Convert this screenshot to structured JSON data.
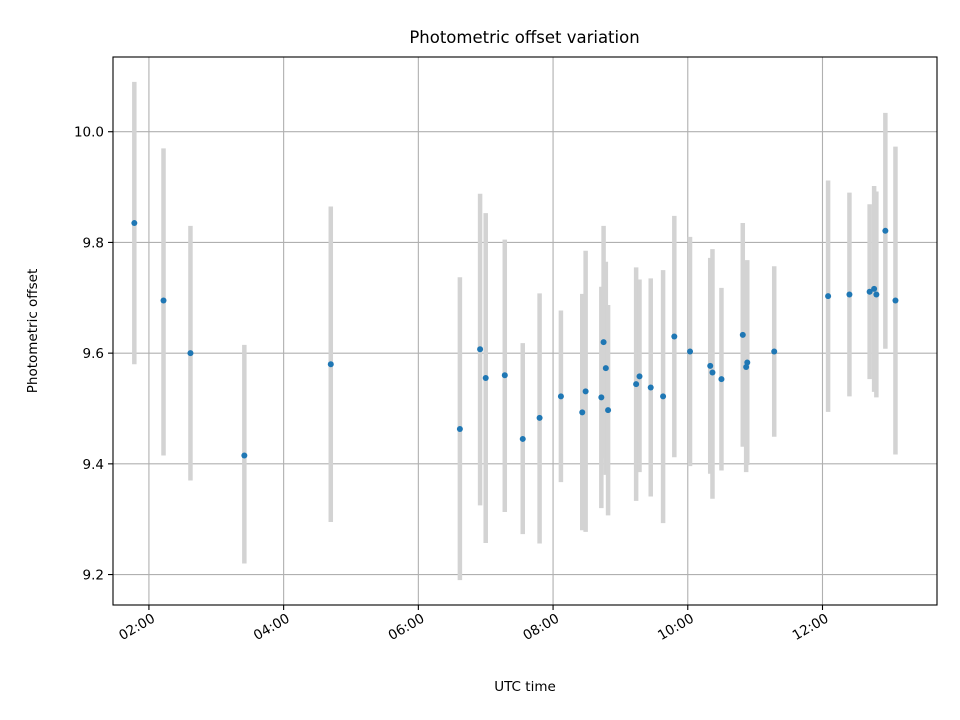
{
  "chart_data": {
    "type": "scatter",
    "title": "Photometric offset variation",
    "xlabel": "UTC time",
    "ylabel": "Photometric offset",
    "xlim": [
      "01:28",
      "13:42"
    ],
    "ylim": [
      9.145,
      10.135
    ],
    "x_ticks": [
      "02:00",
      "04:00",
      "06:00",
      "08:00",
      "10:00",
      "12:00"
    ],
    "y_ticks": [
      "9.2",
      "9.4",
      "9.6",
      "9.8",
      "10.0"
    ],
    "grid": true,
    "colors": {
      "marker": "#1f77b4",
      "errorbar": "#d3d3d3"
    },
    "points": [
      {
        "x": "01:47",
        "y": 9.835,
        "ylo": 9.58,
        "yhi": 10.09
      },
      {
        "x": "02:13",
        "y": 9.695,
        "ylo": 9.415,
        "yhi": 9.97
      },
      {
        "x": "02:37",
        "y": 9.6,
        "ylo": 9.37,
        "yhi": 9.83
      },
      {
        "x": "03:25",
        "y": 9.415,
        "ylo": 9.22,
        "yhi": 9.615
      },
      {
        "x": "04:42",
        "y": 9.58,
        "ylo": 9.295,
        "yhi": 9.865
      },
      {
        "x": "06:37",
        "y": 9.463,
        "ylo": 9.19,
        "yhi": 9.737
      },
      {
        "x": "06:55",
        "y": 9.607,
        "ylo": 9.325,
        "yhi": 9.888
      },
      {
        "x": "07:00",
        "y": 9.555,
        "ylo": 9.257,
        "yhi": 9.853
      },
      {
        "x": "07:17",
        "y": 9.56,
        "ylo": 9.313,
        "yhi": 9.805
      },
      {
        "x": "07:33",
        "y": 9.445,
        "ylo": 9.273,
        "yhi": 9.618
      },
      {
        "x": "07:48",
        "y": 9.483,
        "ylo": 9.256,
        "yhi": 9.708
      },
      {
        "x": "08:07",
        "y": 9.522,
        "ylo": 9.367,
        "yhi": 9.677
      },
      {
        "x": "08:26",
        "y": 9.493,
        "ylo": 9.28,
        "yhi": 9.707
      },
      {
        "x": "08:29",
        "y": 9.531,
        "ylo": 9.277,
        "yhi": 9.785
      },
      {
        "x": "08:43",
        "y": 9.52,
        "ylo": 9.32,
        "yhi": 9.72
      },
      {
        "x": "08:45",
        "y": 9.62,
        "ylo": 9.41,
        "yhi": 9.83
      },
      {
        "x": "08:47",
        "y": 9.573,
        "ylo": 9.38,
        "yhi": 9.765
      },
      {
        "x": "08:49",
        "y": 9.497,
        "ylo": 9.307,
        "yhi": 9.687
      },
      {
        "x": "09:14",
        "y": 9.544,
        "ylo": 9.333,
        "yhi": 9.755
      },
      {
        "x": "09:17",
        "y": 9.558,
        "ylo": 9.385,
        "yhi": 9.733
      },
      {
        "x": "09:27",
        "y": 9.538,
        "ylo": 9.341,
        "yhi": 9.735
      },
      {
        "x": "09:38",
        "y": 9.522,
        "ylo": 9.293,
        "yhi": 9.75
      },
      {
        "x": "09:48",
        "y": 9.63,
        "ylo": 9.412,
        "yhi": 9.848
      },
      {
        "x": "10:02",
        "y": 9.603,
        "ylo": 9.396,
        "yhi": 9.81
      },
      {
        "x": "10:20",
        "y": 9.577,
        "ylo": 9.382,
        "yhi": 9.772
      },
      {
        "x": "10:22",
        "y": 9.565,
        "ylo": 9.337,
        "yhi": 9.788
      },
      {
        "x": "10:30",
        "y": 9.553,
        "ylo": 9.388,
        "yhi": 9.718
      },
      {
        "x": "10:49",
        "y": 9.633,
        "ylo": 9.431,
        "yhi": 9.835
      },
      {
        "x": "10:52",
        "y": 9.575,
        "ylo": 9.385,
        "yhi": 9.765
      },
      {
        "x": "10:53",
        "y": 9.583,
        "ylo": 9.398,
        "yhi": 9.768
      },
      {
        "x": "11:17",
        "y": 9.603,
        "ylo": 9.449,
        "yhi": 9.757
      },
      {
        "x": "12:05",
        "y": 9.703,
        "ylo": 9.494,
        "yhi": 9.912
      },
      {
        "x": "12:24",
        "y": 9.706,
        "ylo": 9.522,
        "yhi": 9.89
      },
      {
        "x": "12:42",
        "y": 9.711,
        "ylo": 9.553,
        "yhi": 9.869
      },
      {
        "x": "12:46",
        "y": 9.716,
        "ylo": 9.53,
        "yhi": 9.902
      },
      {
        "x": "12:48",
        "y": 9.706,
        "ylo": 9.52,
        "yhi": 9.892
      },
      {
        "x": "12:56",
        "y": 9.821,
        "ylo": 9.608,
        "yhi": 10.034
      },
      {
        "x": "13:05",
        "y": 9.695,
        "ylo": 9.417,
        "yhi": 9.973
      }
    ]
  }
}
